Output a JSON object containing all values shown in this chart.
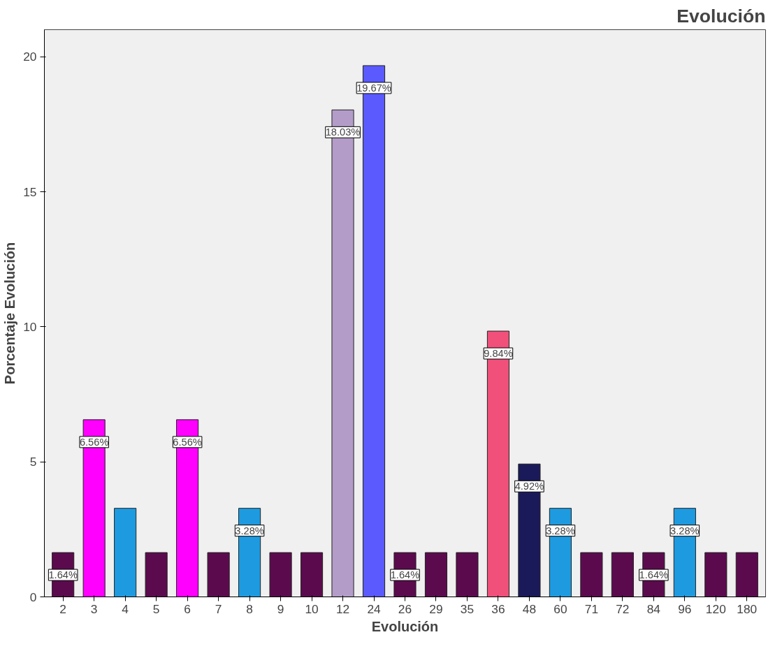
{
  "chart_data": {
    "type": "bar",
    "title": "Evolución",
    "xlabel": "Evolución",
    "ylabel": "Porcentaje Evolución",
    "categories": [
      "2",
      "3",
      "4",
      "5",
      "6",
      "7",
      "8",
      "9",
      "10",
      "12",
      "24",
      "26",
      "29",
      "35",
      "36",
      "48",
      "60",
      "71",
      "72",
      "84",
      "96",
      "120",
      "180"
    ],
    "values": [
      1.64,
      6.56,
      3.28,
      1.64,
      6.56,
      1.64,
      3.28,
      1.64,
      1.64,
      18.03,
      19.67,
      1.64,
      1.64,
      1.64,
      9.84,
      4.92,
      3.28,
      1.64,
      1.64,
      1.64,
      3.28,
      1.64,
      1.64
    ],
    "value_labels": [
      "1.64%",
      "6.56%",
      null,
      null,
      "6.56%",
      null,
      "3.28%",
      null,
      null,
      "18.03%",
      "19.67%",
      "1.64%",
      null,
      null,
      "9.84%",
      "4.92%",
      "3.28%",
      null,
      null,
      "1.64%",
      "3.28%",
      null,
      null
    ],
    "colors": [
      "#5c0a4e",
      "#ff00ff",
      "#1e9be0",
      "#5c0a4e",
      "#ff00ff",
      "#5c0a4e",
      "#1e9be0",
      "#5c0a4e",
      "#5c0a4e",
      "#b49cc8",
      "#5a5aff",
      "#5c0a4e",
      "#5c0a4e",
      "#5c0a4e",
      "#f0507a",
      "#1a1a5a",
      "#1e9be0",
      "#5c0a4e",
      "#5c0a4e",
      "#5c0a4e",
      "#1e9be0",
      "#5c0a4e",
      "#5c0a4e"
    ],
    "ylim": [
      0,
      21
    ],
    "yticks": [
      0,
      5,
      10,
      15,
      20
    ],
    "grid": false
  }
}
